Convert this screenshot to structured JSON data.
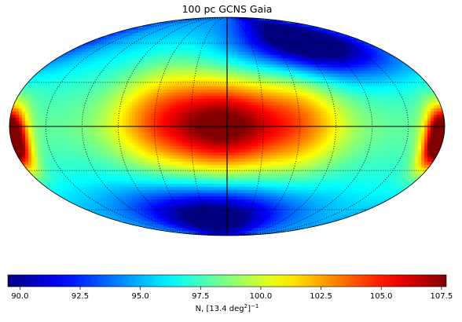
{
  "chart_data": {
    "type": "heatmap",
    "projection": "mollweide",
    "title": "100 pc GCNS Gaia",
    "colormap": "jet",
    "range": [
      89.5,
      107.7
    ],
    "colorbar": {
      "orientation": "horizontal",
      "placement": "bottom",
      "ticks": [
        90.0,
        92.5,
        95.0,
        97.5,
        100.0,
        102.5,
        105.0,
        107.5
      ],
      "tick_labels": [
        "90.0",
        "92.5",
        "95.0",
        "97.5",
        "100.0",
        "102.5",
        "105.0",
        "107.5"
      ],
      "label_text": "N, [13.4 deg",
      "label_sup_deg": "2",
      "label_close": "]",
      "label_sup_exp": "−1"
    },
    "graticule": {
      "meridians_deg": [
        -150,
        -120,
        -90,
        -60,
        -30,
        0,
        30,
        60,
        90,
        120,
        150
      ],
      "parallels_deg": [
        -60,
        -30,
        0,
        30,
        60
      ],
      "style": "dotted",
      "solid_axes": [
        "equator",
        "central-meridian"
      ]
    },
    "features": [
      {
        "name": "galactic-centre",
        "lon": 0,
        "lat": 0,
        "value": 107.0,
        "sigma_lon": 30,
        "sigma_lat": 22
      },
      {
        "name": "centre-band-west",
        "lon": 55,
        "lat": 5,
        "value": 103.5,
        "sigma_lon": 30,
        "sigma_lat": 25
      },
      {
        "name": "centre-band-east",
        "lon": -60,
        "lat": 3,
        "value": 103.0,
        "sigma_lon": 28,
        "sigma_lat": 25
      },
      {
        "name": "anticentre-left",
        "lon": 178,
        "lat": -8,
        "value": 107.5,
        "sigma_lon": 9,
        "sigma_lat": 13
      },
      {
        "name": "anticentre-right",
        "lon": -176,
        "lat": -8,
        "value": 106.5,
        "sigma_lon": 9,
        "sigma_lat": 13
      },
      {
        "name": "northern-low",
        "lon": -100,
        "lat": 60,
        "value": 89.5,
        "sigma_lon": 55,
        "sigma_lat": 18
      },
      {
        "name": "southern-low",
        "lon": 20,
        "lat": -65,
        "value": 91.0,
        "sigma_lon": 70,
        "sigma_lat": 18
      }
    ],
    "background_value": 98.0
  }
}
